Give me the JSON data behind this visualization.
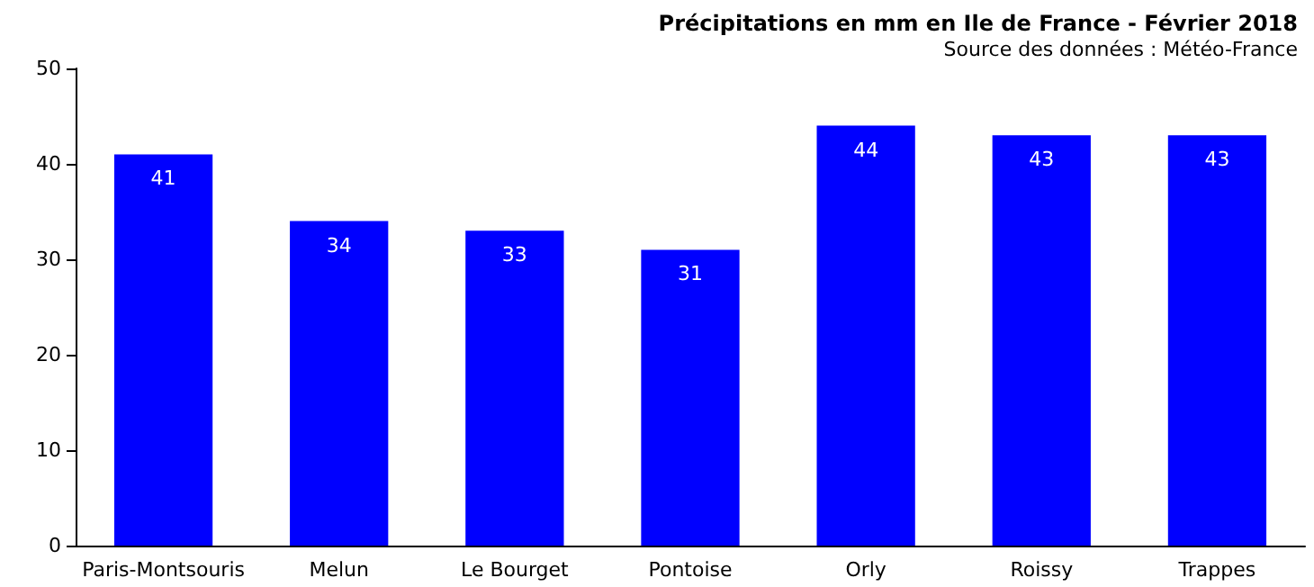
{
  "chart_data": {
    "type": "bar",
    "title": "Précipitations en mm en Ile de France - Février 2018",
    "subtitle": "Source des données : Météo-France",
    "categories": [
      "Paris-Montsouris",
      "Melun",
      "Le Bourget",
      "Pontoise",
      "Orly",
      "Roissy",
      "Trappes"
    ],
    "values": [
      41,
      34,
      33,
      31,
      44,
      43,
      43
    ],
    "color": "#0000ff",
    "ylim": [
      0,
      50
    ],
    "yticks": [
      0,
      10,
      20,
      30,
      40,
      50
    ],
    "grid": false,
    "data_labels": true
  }
}
